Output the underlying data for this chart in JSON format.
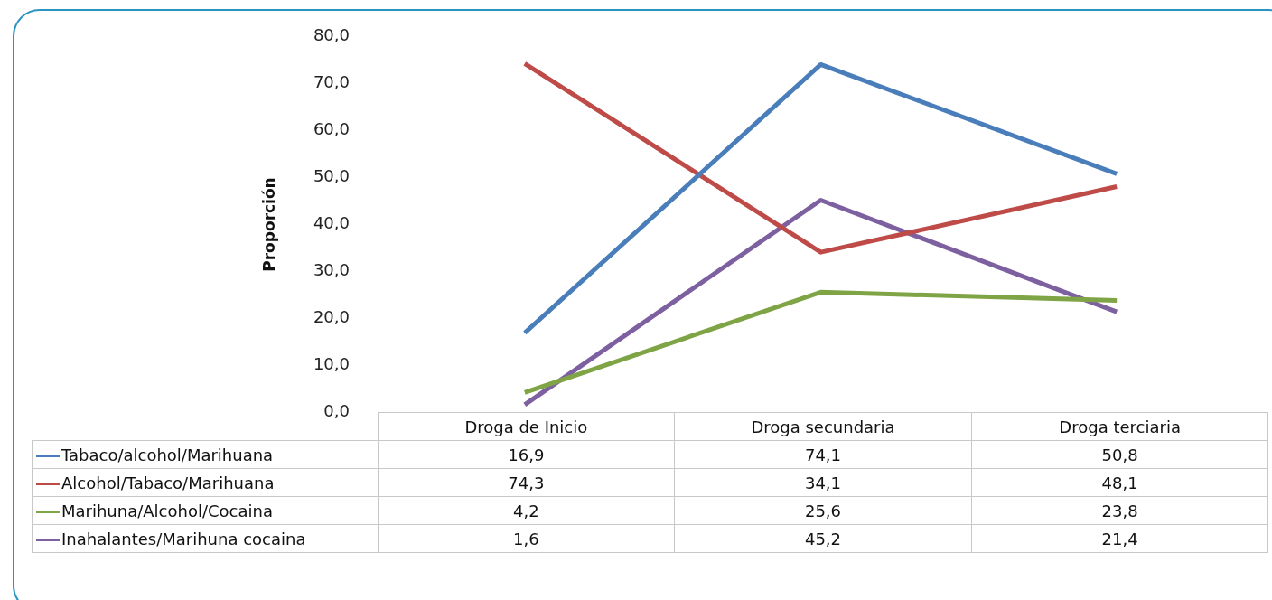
{
  "chart_data": {
    "type": "line",
    "ylabel": "Proporción",
    "categories": [
      "Droga de Inicio",
      "Droga secundaria",
      "Droga terciaria"
    ],
    "series": [
      {
        "name": "Tabaco/alcohol/Marihuana",
        "color": "#4a7ebb",
        "values": [
          16.9,
          74.1,
          50.8
        ],
        "value_labels": [
          "16,9",
          "74,1",
          "50,8"
        ]
      },
      {
        "name": "Alcohol/Tabaco/Marihuana",
        "color": "#be4b48",
        "values": [
          74.3,
          34.1,
          48.1
        ],
        "value_labels": [
          "74,3",
          "34,1",
          "48,1"
        ]
      },
      {
        "name": "Marihuna/Alcohol/Cocaina",
        "color": "#7fa445",
        "values": [
          4.2,
          25.6,
          23.8
        ],
        "value_labels": [
          "4,2",
          "25,6",
          "23,8"
        ]
      },
      {
        "name": "Inahalantes/Marihuna cocaina",
        "color": "#7d60a0",
        "values": [
          1.6,
          45.2,
          21.4
        ],
        "value_labels": [
          "1,6",
          "45,2",
          "21,4"
        ]
      }
    ],
    "ylim": [
      0,
      80
    ],
    "yticks": [
      {
        "value": 0,
        "label": "0,0"
      },
      {
        "value": 10,
        "label": "10,0"
      },
      {
        "value": 20,
        "label": "20,0"
      },
      {
        "value": 30,
        "label": "30,0"
      },
      {
        "value": 40,
        "label": "40,0"
      },
      {
        "value": 50,
        "label": "50,0"
      },
      {
        "value": 60,
        "label": "60,0"
      },
      {
        "value": 70,
        "label": "70,0"
      },
      {
        "value": 80,
        "label": "80,0"
      }
    ],
    "grid": false,
    "legend": "bottom",
    "marker": "none",
    "line_style": "solid"
  }
}
